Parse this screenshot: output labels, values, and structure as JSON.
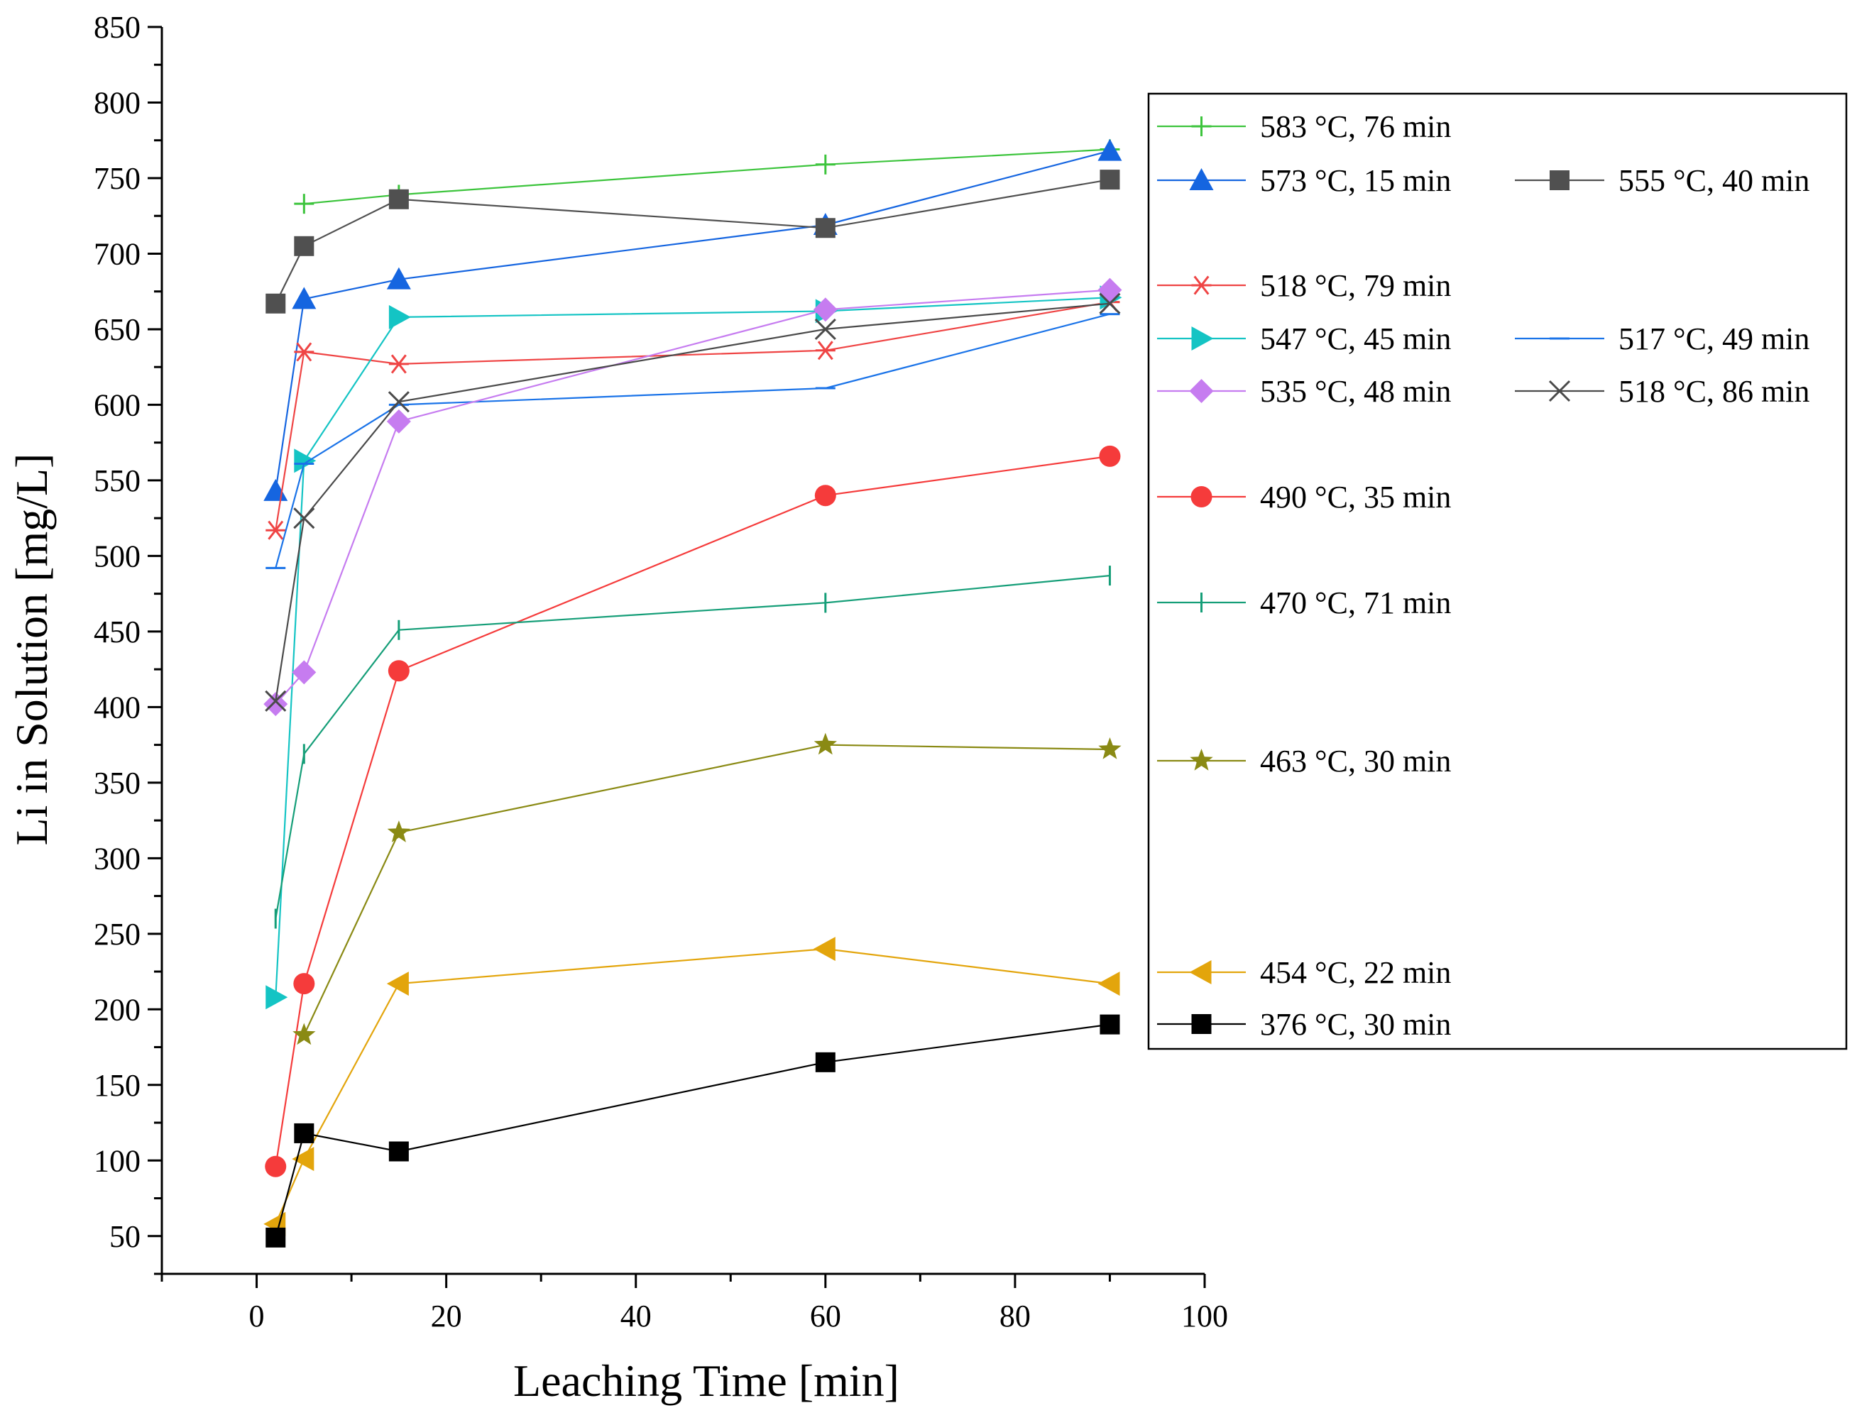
{
  "chart_data": {
    "type": "line",
    "title": "",
    "xlabel": "Leaching Time [min]",
    "ylabel": "Li in Solution [mg/L]",
    "xlim": [
      -10,
      100
    ],
    "ylim": [
      25,
      850
    ],
    "xticks": [
      0,
      20,
      40,
      60,
      80,
      100
    ],
    "yticks": [
      50,
      100,
      150,
      200,
      250,
      300,
      350,
      400,
      450,
      500,
      550,
      600,
      650,
      700,
      750,
      800,
      850
    ],
    "x_tick_labels": [
      "0",
      "20",
      "40",
      "60",
      "80",
      "100"
    ],
    "y_tick_labels": [
      "50",
      "100",
      "150",
      "200",
      "250",
      "300",
      "350",
      "400",
      "450",
      "500",
      "550",
      "600",
      "650",
      "700",
      "750",
      "800",
      "850"
    ],
    "grid": false,
    "legend_position": "right",
    "series": [
      {
        "name": "583 °C, 76 min",
        "color": "#3cc43c",
        "marker": "plus",
        "x": [
          5,
          15,
          60,
          90
        ],
        "y": [
          733,
          739,
          759,
          769
        ]
      },
      {
        "name": "573 °C, 15 min",
        "color": "#1565e0",
        "marker": "triangle-up",
        "x": [
          2,
          5,
          15,
          60,
          90
        ],
        "y": [
          543,
          670,
          683,
          719,
          768
        ]
      },
      {
        "name": "555 °C, 40 min",
        "color": "#505050",
        "marker": "square",
        "x": [
          2,
          5,
          15,
          60,
          90
        ],
        "y": [
          667,
          705,
          736,
          717,
          749
        ]
      },
      {
        "name": "518 °C, 79 min",
        "color": "#ef4444",
        "marker": "asterisk",
        "x": [
          2,
          5,
          15,
          60,
          90
        ],
        "y": [
          517,
          635,
          627,
          636,
          668
        ]
      },
      {
        "name": "547 °C, 45 min",
        "color": "#14c4c4",
        "marker": "triangle-right",
        "x": [
          2,
          5,
          15,
          60,
          90
        ],
        "y": [
          208,
          563,
          658,
          662,
          671
        ]
      },
      {
        "name": "517 °C, 49 min",
        "color": "#1a73e8",
        "marker": "minus",
        "x": [
          2,
          5,
          15,
          60,
          90
        ],
        "y": [
          492,
          561,
          600,
          611,
          660
        ]
      },
      {
        "name": "535 °C, 48 min",
        "color": "#c67cf0",
        "marker": "diamond",
        "x": [
          2,
          5,
          15,
          60,
          90
        ],
        "y": [
          402,
          423,
          589,
          663,
          676
        ]
      },
      {
        "name": "518 °C, 86 min",
        "color": "#4a4a4a",
        "marker": "cross",
        "x": [
          2,
          5,
          15,
          60,
          90
        ],
        "y": [
          404,
          525,
          602,
          650,
          667
        ]
      },
      {
        "name": "490 °C, 35 min",
        "color": "#f53b3b",
        "marker": "circle",
        "x": [
          2,
          5,
          15,
          60,
          90
        ],
        "y": [
          96,
          217,
          424,
          540,
          566
        ]
      },
      {
        "name": "470 °C, 71 min",
        "color": "#159e78",
        "marker": "tick",
        "x": [
          2,
          5,
          15,
          60,
          90
        ],
        "y": [
          260,
          369,
          451,
          469,
          487
        ]
      },
      {
        "name": "463 °C, 30 min",
        "color": "#8a8a14",
        "marker": "star",
        "x": [
          5,
          15,
          60,
          90
        ],
        "y": [
          183,
          317,
          375,
          372
        ]
      },
      {
        "name": "454 °C, 22 min",
        "color": "#e3a50c",
        "marker": "triangle-left",
        "x": [
          2,
          5,
          15,
          60,
          90
        ],
        "y": [
          58,
          101,
          217,
          240,
          217
        ]
      },
      {
        "name": "376 °C, 30 min",
        "color": "#000000",
        "marker": "square",
        "x": [
          2,
          5,
          15,
          60,
          90
        ],
        "y": [
          49,
          118,
          106,
          165,
          190
        ]
      }
    ]
  }
}
